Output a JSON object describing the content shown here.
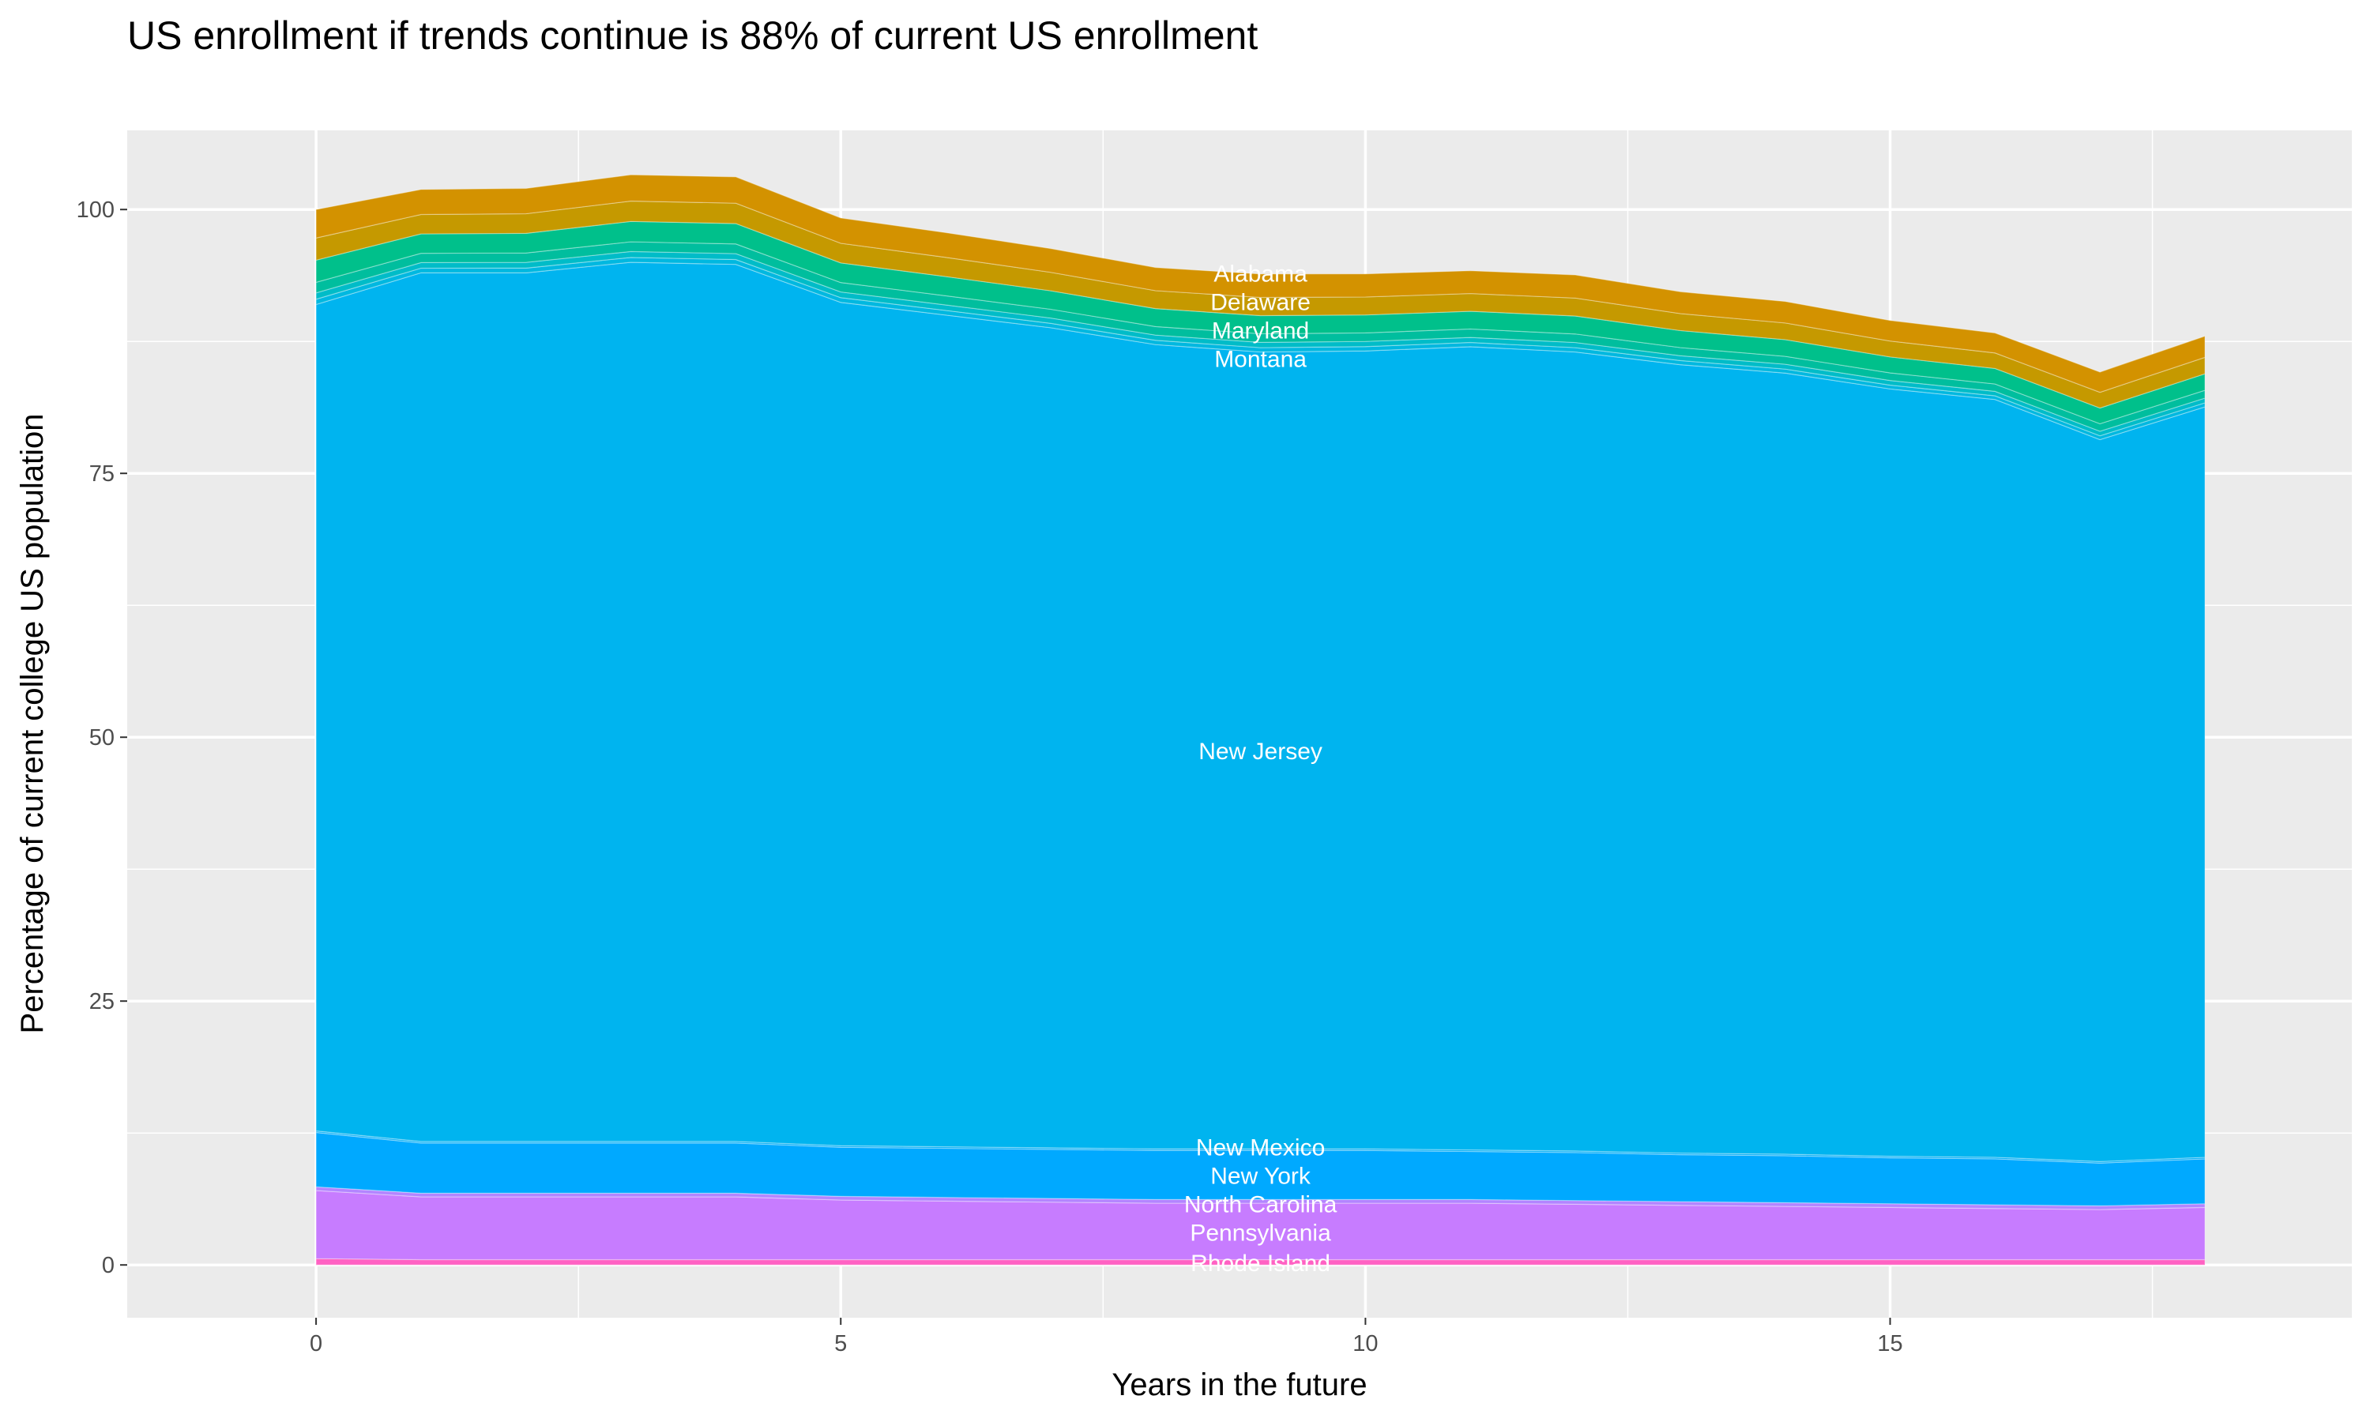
{
  "chart_data": {
    "type": "area",
    "stacked": true,
    "title": "US enrollment if trends continue is 88% of current US enrollment",
    "xlabel": "Years in the future",
    "ylabel": "Percentage of current college US population",
    "x": [
      0,
      1,
      2,
      3,
      4,
      5,
      6,
      7,
      8,
      9,
      10,
      11,
      12,
      13,
      14,
      15,
      16,
      17,
      18
    ],
    "xlim": [
      -1.8,
      19.4
    ],
    "ylim": [
      -5,
      107.5
    ],
    "xticks": [
      "0",
      "5",
      "10",
      "15"
    ],
    "xtick_values": [
      0,
      5,
      10,
      15
    ],
    "yticks": [
      "0",
      "25",
      "50",
      "75",
      "100"
    ],
    "ytick_values": [
      0,
      25,
      50,
      75,
      100
    ],
    "grid": true,
    "background": "#EBEBEB",
    "label_x": 9,
    "series": [
      {
        "name": "Rhode Island",
        "color": "#FF61C3",
        "values": [
          0.6,
          0.5,
          0.5,
          0.5,
          0.5,
          0.5,
          0.5,
          0.5,
          0.5,
          0.5,
          0.5,
          0.5,
          0.5,
          0.5,
          0.5,
          0.5,
          0.5,
          0.5,
          0.5
        ]
      },
      {
        "name": "Pennsylvania",
        "color": "#C77CFF",
        "values": [
          6.45,
          5.95,
          5.95,
          5.95,
          5.95,
          5.65,
          5.55,
          5.45,
          5.35,
          5.35,
          5.35,
          5.35,
          5.25,
          5.15,
          5.05,
          4.95,
          4.85,
          4.75,
          4.95
        ]
      },
      {
        "name": "North Carolina",
        "color": "#B385FF",
        "values": [
          0.35,
          0.35,
          0.35,
          0.35,
          0.35,
          0.35,
          0.35,
          0.35,
          0.35,
          0.35,
          0.35,
          0.35,
          0.35,
          0.35,
          0.35,
          0.35,
          0.35,
          0.35,
          0.35
        ]
      },
      {
        "name": "New York",
        "color": "#00A9FF",
        "values": [
          5.15,
          4.75,
          4.75,
          4.75,
          4.75,
          4.65,
          4.65,
          4.65,
          4.65,
          4.65,
          4.65,
          4.55,
          4.55,
          4.45,
          4.45,
          4.35,
          4.35,
          4.05,
          4.25
        ]
      },
      {
        "name": "New Mexico",
        "color": "#00AEF6",
        "values": [
          0.15,
          0.15,
          0.15,
          0.15,
          0.15,
          0.15,
          0.15,
          0.15,
          0.15,
          0.15,
          0.15,
          0.15,
          0.15,
          0.15,
          0.15,
          0.15,
          0.15,
          0.15,
          0.15
        ]
      },
      {
        "name": "New Jersey",
        "color": "#00B4EF",
        "values": [
          78.3,
          82.3,
          82.3,
          83.3,
          83.1,
          79.9,
          78.8,
          77.7,
          76.2,
          75.5,
          75.6,
          76.1,
          75.7,
          74.7,
          74.0,
          72.7,
          71.8,
          68.4,
          71.1
        ]
      },
      {
        "name": "",
        "color": "#00B8E0",
        "values": [
          0.5,
          0.44,
          0.45,
          0.46,
          0.46,
          0.45,
          0.44,
          0.42,
          0.41,
          0.41,
          0.41,
          0.4,
          0.41,
          0.39,
          0.38,
          0.36,
          0.35,
          0.36,
          0.38
        ]
      },
      {
        "name": "Montana",
        "color": "#00BCC8",
        "values": [
          0.6,
          0.53,
          0.54,
          0.56,
          0.56,
          0.54,
          0.52,
          0.5,
          0.49,
          0.5,
          0.49,
          0.48,
          0.49,
          0.46,
          0.46,
          0.44,
          0.42,
          0.43,
          0.45
        ]
      },
      {
        "name": "",
        "color": "#00BE9E",
        "values": [
          1.0,
          0.88,
          0.89,
          0.92,
          0.92,
          0.89,
          0.87,
          0.83,
          0.81,
          0.82,
          0.81,
          0.8,
          0.81,
          0.77,
          0.75,
          0.72,
          0.7,
          0.71,
          0.74
        ]
      },
      {
        "name": "Maryland",
        "color": "#00C08B",
        "values": [
          2.1,
          1.84,
          1.86,
          1.93,
          1.93,
          1.86,
          1.82,
          1.75,
          1.7,
          1.72,
          1.7,
          1.68,
          1.7,
          1.61,
          1.58,
          1.51,
          1.47,
          1.49,
          1.56
        ]
      },
      {
        "name": "Delaware",
        "color": "#C59900",
        "values": [
          2.1,
          1.84,
          1.86,
          1.93,
          1.93,
          1.86,
          1.82,
          1.75,
          1.7,
          1.72,
          1.7,
          1.68,
          1.7,
          1.61,
          1.58,
          1.51,
          1.47,
          1.49,
          1.56
        ]
      },
      {
        "name": "Alabama",
        "color": "#D39200",
        "values": [
          2.7,
          2.37,
          2.4,
          2.49,
          2.49,
          2.4,
          2.34,
          2.25,
          2.19,
          2.22,
          2.19,
          2.16,
          2.19,
          2.07,
          2.04,
          1.95,
          1.89,
          1.92,
          2.01
        ]
      }
    ]
  }
}
